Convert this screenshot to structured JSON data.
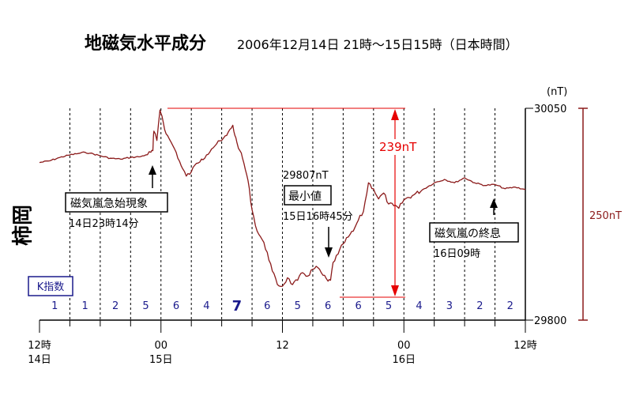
{
  "title": {
    "main": "地磁気水平成分",
    "sub": "2006年12月14日 21時～15日15時（日本時間）"
  },
  "station": "柿岡",
  "unit_label": "(nT)",
  "y_ticks": {
    "top": "30050",
    "bottom": "29800"
  },
  "range_label": "250nT",
  "amplitude_label": "239nT",
  "x_ticks": [
    {
      "hour": 0,
      "line1": "12時",
      "line2": "14日"
    },
    {
      "hour": 12,
      "line1": "00",
      "line2": "15日"
    },
    {
      "hour": 24,
      "line1": "12",
      "line2": ""
    },
    {
      "hour": 36,
      "line1": "00",
      "line2": "16日"
    },
    {
      "hour": 48,
      "line1": "12時",
      "line2": ""
    }
  ],
  "annotations": {
    "ssc_label": "磁気嵐急始現象",
    "ssc_time": "14日23時14分",
    "min_value": "29807nT",
    "min_label": "最小値",
    "min_time": "15日16時45分",
    "end_label": "磁気嵐の終息",
    "end_time": "16日09時"
  },
  "k_index": {
    "label": "K指数",
    "values": [
      "1",
      "1",
      "2",
      "5",
      "6",
      "4",
      "7",
      "6",
      "5",
      "6",
      "6",
      "5",
      "4",
      "3",
      "2",
      "2"
    ]
  },
  "colors": {
    "trace": "#8b1a1a",
    "amplitude": "#e60000",
    "range": "#8b1a1a",
    "k_index": "#1a1a8c"
  },
  "chart_data": {
    "type": "line",
    "x_unit": "hours since 2006-12-14 12:00 JST",
    "xlim": [
      0,
      48
    ],
    "ylim": [
      29800,
      30050
    ],
    "y_unit": "nT",
    "series": [
      {
        "name": "",
        "x": [
          0,
          1,
          2,
          3,
          4,
          4.5,
          5,
          6,
          7,
          8,
          9,
          10,
          10.5,
          11,
          11.2,
          11.24,
          11.3,
          11.6,
          11.9,
          12.1,
          12.5,
          13,
          13.5,
          14,
          14.5,
          15,
          15.5,
          16,
          16.5,
          17,
          17.5,
          18,
          18.5,
          18.8,
          19.1,
          19.3,
          19.5,
          19.8,
          20.2,
          20.6,
          21,
          21.5,
          22,
          22.5,
          23,
          23.5,
          24,
          24.5,
          25,
          25.5,
          26,
          26.5,
          27,
          27.5,
          28,
          28.5,
          28.75,
          29,
          29.5,
          30,
          30.5,
          31,
          31.5,
          32,
          32.5,
          33,
          33.5,
          34,
          34.5,
          35,
          35.5,
          36,
          37,
          38,
          39,
          40,
          41,
          42,
          43,
          44,
          45,
          46,
          47,
          48
        ],
        "y": [
          29986,
          29988,
          29992,
          29995,
          29997,
          29998,
          29997,
          29994,
          29991,
          29990,
          29992,
          29993,
          29995,
          29998,
          30000,
          30012,
          30023,
          30012,
          30048,
          30041,
          30020,
          30010,
          29998,
          29982,
          29970,
          29975,
          29985,
          29990,
          29995,
          30002,
          30008,
          30012,
          30018,
          30025,
          30030,
          30018,
          30010,
          30000,
          29985,
          29965,
          29930,
          29905,
          29895,
          29880,
          29858,
          29842,
          29840,
          29850,
          29842,
          29847,
          29856,
          29852,
          29860,
          29862,
          29853,
          29846,
          29847,
          29868,
          29878,
          29890,
          29898,
          29905,
          29918,
          29928,
          29962,
          29955,
          29943,
          29950,
          29937,
          29935,
          29932,
          29942,
          29948,
          29955,
          29962,
          29966,
          29962,
          29968,
          29962,
          29959,
          29960,
          29955,
          29957,
          29954
        ]
      }
    ]
  }
}
